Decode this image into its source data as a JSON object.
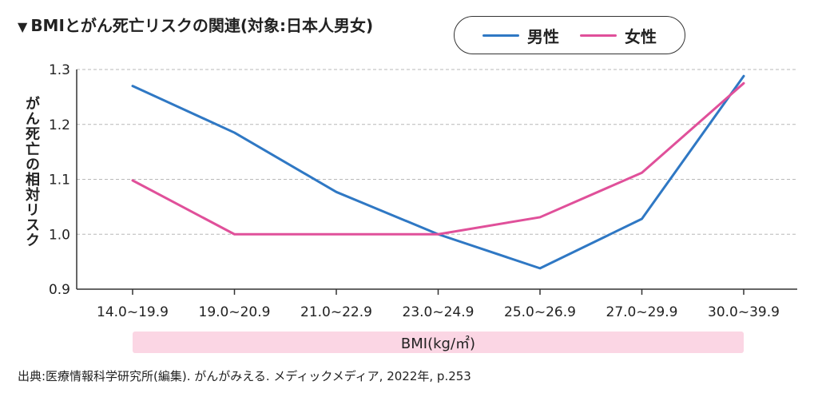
{
  "title": {
    "marker": "▼",
    "text": "BMIとがん死亡リスクの関連(対象:日本人男女)"
  },
  "source": "出典:医療情報科学研究所(編集). がんがみえる. メディックメディア, 2022年, p.253",
  "chart_data": {
    "type": "line",
    "title": "BMIとがん死亡リスクの関連(対象:日本人男女)",
    "xlabel": "BMI(kg/㎡)",
    "ylabel": "がん死亡の相対リスク",
    "categories": [
      "14.0~19.9",
      "19.0~20.9",
      "21.0~22.9",
      "23.0~24.9",
      "25.0~26.9",
      "27.0~29.9",
      "30.0~39.9"
    ],
    "series": [
      {
        "name": "男性",
        "color": "#2f78c4",
        "values": [
          1.27,
          1.185,
          1.077,
          1.0,
          0.938,
          1.028,
          1.288
        ]
      },
      {
        "name": "女性",
        "color": "#e0509a",
        "values": [
          1.098,
          1.0,
          1.0,
          1.0,
          1.031,
          1.112,
          1.275
        ]
      }
    ],
    "ylim": [
      0.9,
      1.3
    ],
    "yticks": [
      "0.9",
      "1.0",
      "1.1",
      "1.2",
      "1.3"
    ],
    "grid": "horizontal dashed",
    "legend_position": "top-right"
  }
}
